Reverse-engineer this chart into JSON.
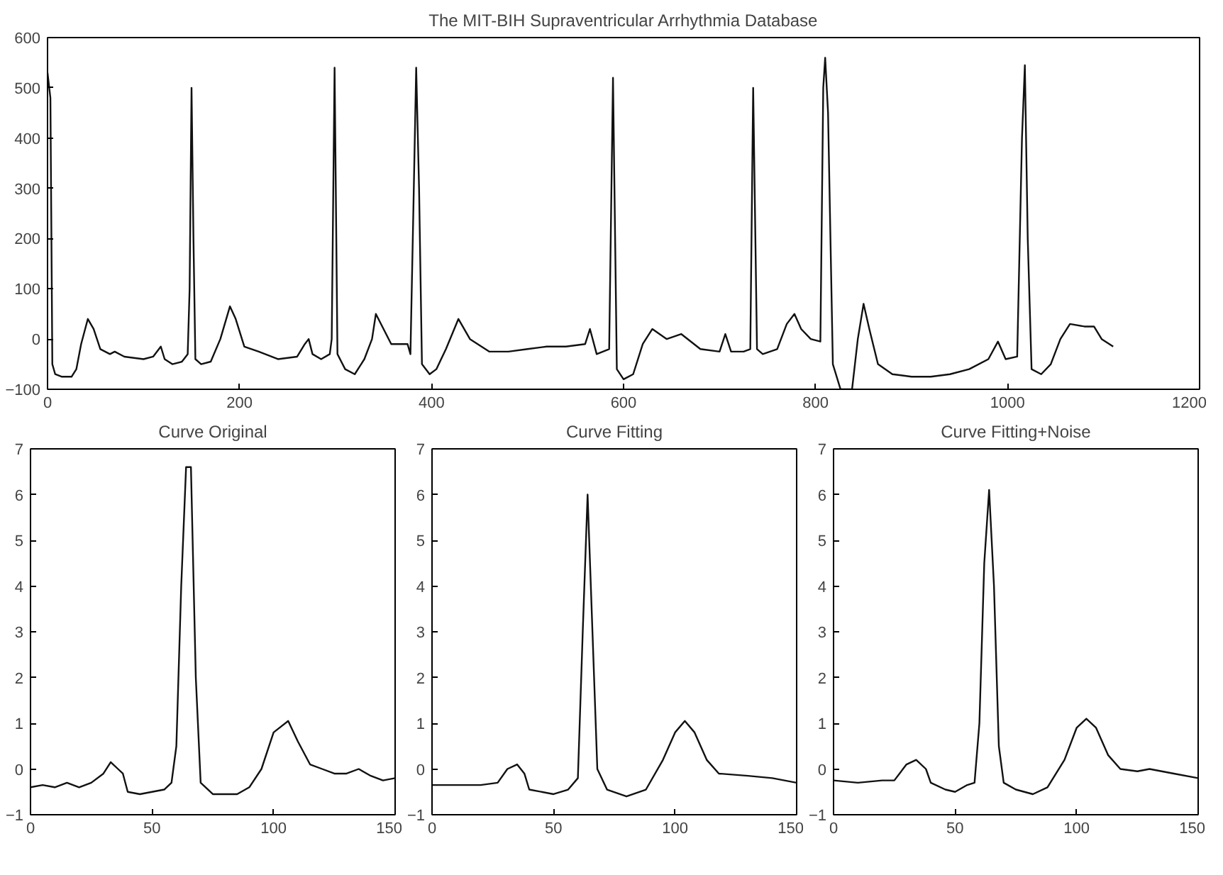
{
  "chart_data": [
    {
      "type": "line",
      "title": "The MIT-BIH Supraventricular Arrhythmia Database",
      "xlim": [
        0,
        1200
      ],
      "ylim": [
        -100,
        600
      ],
      "xticks": [
        0,
        200,
        400,
        600,
        800,
        1000,
        1200
      ],
      "yticks": [
        -100,
        0,
        100,
        200,
        300,
        400,
        500,
        600
      ],
      "grid": false,
      "marker": "none",
      "series": [
        {
          "color": "#111111",
          "x": [
            0,
            3,
            5,
            8,
            15,
            25,
            30,
            35,
            42,
            48,
            55,
            65,
            70,
            80,
            100,
            110,
            118,
            122,
            130,
            140,
            146,
            148,
            150,
            152,
            154,
            160,
            170,
            180,
            190,
            196,
            205,
            220,
            240,
            260,
            268,
            272,
            276,
            285,
            294,
            296,
            299,
            302,
            310,
            320,
            330,
            338,
            342,
            350,
            358,
            370,
            375,
            378,
            381,
            384,
            387,
            390,
            398,
            405,
            415,
            428,
            440,
            460,
            480,
            500,
            520,
            540,
            560,
            565,
            572,
            585,
            589,
            593,
            600,
            610,
            620,
            630,
            645,
            660,
            680,
            700,
            706,
            712,
            725,
            732,
            735,
            739,
            745,
            760,
            770,
            778,
            785,
            795,
            805,
            808,
            810,
            813,
            818,
            826,
            838,
            844,
            850,
            856,
            865,
            880,
            900,
            920,
            940,
            960,
            980,
            990,
            998,
            1010,
            1015,
            1018,
            1021,
            1025,
            1035,
            1045,
            1055,
            1065,
            1080,
            1090,
            1098,
            1110
          ],
          "values": [
            530,
            480,
            -50,
            -70,
            -75,
            -75,
            -60,
            -10,
            40,
            20,
            -20,
            -30,
            -25,
            -35,
            -40,
            -35,
            -15,
            -40,
            -50,
            -45,
            -30,
            100,
            500,
            200,
            -40,
            -50,
            -45,
            0,
            65,
            40,
            -15,
            -25,
            -40,
            -35,
            -10,
            0,
            -30,
            -40,
            -30,
            0,
            540,
            -30,
            -60,
            -70,
            -40,
            0,
            50,
            20,
            -10,
            -10,
            -10,
            -30,
            250,
            540,
            300,
            -50,
            -70,
            -60,
            -20,
            40,
            0,
            -25,
            -25,
            -20,
            -15,
            -15,
            -10,
            20,
            -30,
            -20,
            520,
            -60,
            -80,
            -70,
            -10,
            20,
            0,
            10,
            -20,
            -25,
            10,
            -25,
            -25,
            -20,
            500,
            -20,
            -30,
            -20,
            30,
            50,
            20,
            0,
            -5,
            500,
            560,
            450,
            -50,
            -100,
            -100,
            0,
            70,
            20,
            -50,
            -70,
            -75,
            -75,
            -70,
            -60,
            -40,
            -5,
            -40,
            -35,
            400,
            545,
            200,
            -60,
            -70,
            -50,
            0,
            30,
            25,
            25,
            0,
            -15
          ]
        }
      ]
    },
    {
      "type": "line",
      "title": "Curve Original",
      "xlim": [
        0,
        150
      ],
      "ylim": [
        -1,
        7
      ],
      "xticks": [
        0,
        50,
        100,
        150
      ],
      "yticks": [
        -1,
        0,
        1,
        2,
        3,
        4,
        5,
        6,
        7
      ],
      "grid": false,
      "marker": "none",
      "series": [
        {
          "color": "#111111",
          "x": [
            0,
            5,
            10,
            15,
            20,
            25,
            30,
            33,
            36,
            38,
            40,
            45,
            50,
            55,
            58,
            60,
            62,
            64,
            66,
            68,
            70,
            75,
            80,
            85,
            90,
            95,
            100,
            106,
            110,
            115,
            120,
            125,
            130,
            135,
            140,
            145,
            150
          ],
          "values": [
            -0.4,
            -0.35,
            -0.4,
            -0.3,
            -0.4,
            -0.3,
            -0.1,
            0.15,
            0,
            -0.1,
            -0.5,
            -0.55,
            -0.5,
            -0.45,
            -0.3,
            0.5,
            4,
            6.6,
            6.6,
            2,
            -0.3,
            -0.55,
            -0.55,
            -0.55,
            -0.4,
            0,
            0.8,
            1.05,
            0.6,
            0.1,
            0,
            -0.1,
            -0.1,
            0,
            -0.15,
            -0.25,
            -0.2
          ]
        }
      ]
    },
    {
      "type": "line",
      "title": "Curve Fitting",
      "xlim": [
        0,
        150
      ],
      "ylim": [
        -1,
        7
      ],
      "xticks": [
        0,
        50,
        100,
        150
      ],
      "yticks": [
        -1,
        0,
        1,
        2,
        3,
        4,
        5,
        6,
        7
      ],
      "grid": false,
      "marker": "none",
      "series": [
        {
          "color": "#111111",
          "x": [
            0,
            20,
            27,
            31,
            35,
            38,
            40,
            50,
            56,
            60,
            62,
            64,
            66,
            68,
            72,
            80,
            88,
            95,
            100,
            104,
            108,
            113,
            118,
            130,
            140,
            150
          ],
          "values": [
            -0.35,
            -0.35,
            -0.3,
            0,
            0.1,
            -0.1,
            -0.45,
            -0.55,
            -0.45,
            -0.2,
            3,
            6,
            3,
            0,
            -0.45,
            -0.6,
            -0.45,
            0.2,
            0.8,
            1.05,
            0.8,
            0.2,
            -0.1,
            -0.15,
            -0.2,
            -0.3
          ]
        }
      ]
    },
    {
      "type": "line",
      "title": "Curve Fitting+Noise",
      "xlim": [
        0,
        150
      ],
      "ylim": [
        -1,
        7
      ],
      "xticks": [
        0,
        50,
        100,
        150
      ],
      "yticks": [
        -1,
        0,
        1,
        2,
        3,
        4,
        5,
        6,
        7
      ],
      "grid": false,
      "marker": "none",
      "series": [
        {
          "color": "#111111",
          "x": [
            0,
            10,
            20,
            25,
            30,
            34,
            38,
            40,
            46,
            50,
            55,
            58,
            60,
            62,
            64,
            66,
            68,
            70,
            75,
            82,
            88,
            95,
            100,
            104,
            108,
            113,
            118,
            125,
            130,
            140,
            150
          ],
          "values": [
            -0.25,
            -0.3,
            -0.25,
            -0.25,
            0.1,
            0.2,
            0,
            -0.3,
            -0.45,
            -0.5,
            -0.35,
            -0.3,
            1,
            4.5,
            6.1,
            4,
            0.5,
            -0.3,
            -0.45,
            -0.55,
            -0.4,
            0.2,
            0.9,
            1.1,
            0.9,
            0.3,
            0,
            -0.05,
            0,
            -0.1,
            -0.2
          ]
        }
      ]
    }
  ]
}
